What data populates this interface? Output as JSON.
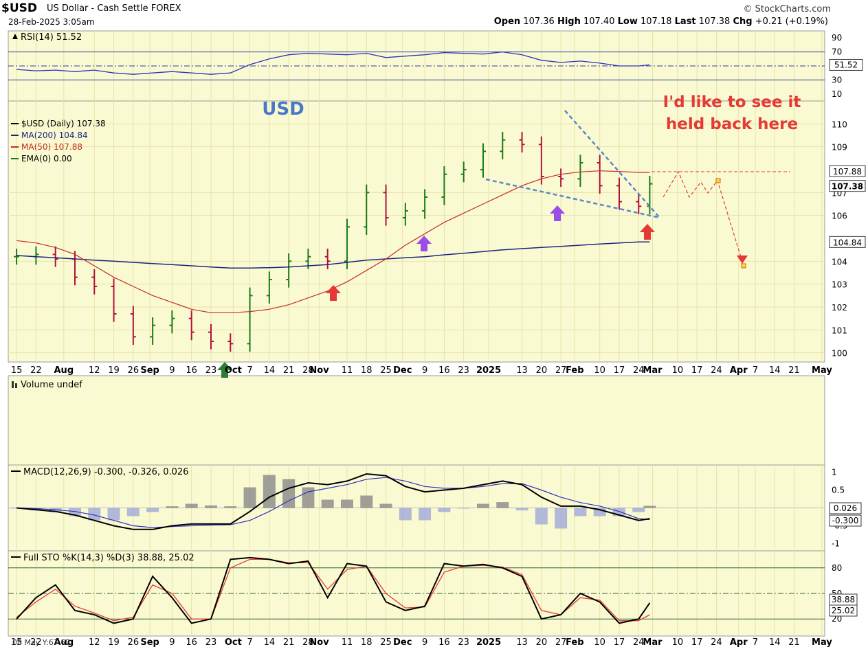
{
  "header": {
    "symbol": "$USD",
    "description": "US Dollar - Cash Settle FOREX",
    "datetime": "28-Feb-2025 3:05am",
    "brand": "© StockCharts.com",
    "open_label": "Open",
    "open": "107.36",
    "high_label": "High",
    "high": "107.40",
    "low_label": "Low",
    "low": "107.18",
    "last_label": "Last",
    "last": "107.38",
    "chg_label": "Chg",
    "chg": "+0.21 (+0.19%)"
  },
  "colors": {
    "panel_bg": "#fafad2",
    "price_up": "#1a7a1a",
    "price_down": "#b0123a",
    "ma200": "#1a237e",
    "ma50": "#c62828",
    "rsi_line": "#3030c0",
    "macd_line": "#000000",
    "signal_line": "#3030c0",
    "stoch_k": "#000000",
    "stoch_d": "#e53935",
    "trend_line": "#5b86c9",
    "annotation_red": "#e53935",
    "arrow_purple": "#9c4de8",
    "arrow_green": "#2e7d32"
  },
  "chart_data": {
    "type": "line",
    "dates": [
      "2024-07-15",
      "2024-07-22",
      "2024-07-29",
      "2024-08-05",
      "2024-08-12",
      "2024-08-19",
      "2024-08-26",
      "2024-09-02",
      "2024-09-09",
      "2024-09-16",
      "2024-09-23",
      "2024-09-30",
      "2024-10-07",
      "2024-10-14",
      "2024-10-21",
      "2024-10-28",
      "2024-11-04",
      "2024-11-11",
      "2024-11-18",
      "2024-11-25",
      "2024-12-02",
      "2024-12-09",
      "2024-12-16",
      "2024-12-23",
      "2024-12-30",
      "2025-01-06",
      "2025-01-13",
      "2025-01-20",
      "2025-01-27",
      "2025-02-03",
      "2025-02-10",
      "2025-02-17",
      "2025-02-24",
      "2025-02-28"
    ],
    "close": [
      104.2,
      104.3,
      104.1,
      103.3,
      102.9,
      101.7,
      100.7,
      101.2,
      101.5,
      100.9,
      100.5,
      100.4,
      102.5,
      103.2,
      104.0,
      104.2,
      104.0,
      105.5,
      107.0,
      105.9,
      106.2,
      106.8,
      107.8,
      108.0,
      108.8,
      109.3,
      109.1,
      107.7,
      107.6,
      108.3,
      107.3,
      106.6,
      106.4,
      107.38
    ],
    "ma200": [
      104.25,
      104.2,
      104.15,
      104.1,
      104.05,
      104.0,
      103.95,
      103.9,
      103.85,
      103.8,
      103.75,
      103.7,
      103.7,
      103.72,
      103.75,
      103.8,
      103.85,
      103.95,
      104.05,
      104.1,
      104.15,
      104.2,
      104.28,
      104.35,
      104.42,
      104.5,
      104.55,
      104.6,
      104.65,
      104.7,
      104.75,
      104.8,
      104.84,
      104.84
    ],
    "ma50": [
      104.9,
      104.8,
      104.6,
      104.3,
      103.8,
      103.3,
      102.9,
      102.5,
      102.2,
      101.9,
      101.75,
      101.75,
      101.8,
      101.9,
      102.1,
      102.4,
      102.7,
      103.1,
      103.6,
      104.1,
      104.7,
      105.2,
      105.7,
      106.1,
      106.5,
      106.9,
      107.3,
      107.6,
      107.8,
      107.9,
      107.95,
      107.92,
      107.88,
      107.88
    ],
    "xticks": [
      {
        "date": "2024-07-15",
        "label": "15",
        "bold": false
      },
      {
        "date": "2024-07-22",
        "label": "22",
        "bold": false
      },
      {
        "date": "2024-08-01",
        "label": "Aug",
        "bold": true
      },
      {
        "date": "2024-08-12",
        "label": "12",
        "bold": false
      },
      {
        "date": "2024-08-19",
        "label": "19",
        "bold": false
      },
      {
        "date": "2024-08-26",
        "label": "26",
        "bold": false
      },
      {
        "date": "2024-09-01",
        "label": "Sep",
        "bold": true
      },
      {
        "date": "2024-09-09",
        "label": "9",
        "bold": false
      },
      {
        "date": "2024-09-16",
        "label": "16",
        "bold": false
      },
      {
        "date": "2024-09-23",
        "label": "23",
        "bold": false
      },
      {
        "date": "2024-10-01",
        "label": "Oct",
        "bold": true
      },
      {
        "date": "2024-10-07",
        "label": "7",
        "bold": false
      },
      {
        "date": "2024-10-14",
        "label": "14",
        "bold": false
      },
      {
        "date": "2024-10-21",
        "label": "21",
        "bold": false
      },
      {
        "date": "2024-10-28",
        "label": "28",
        "bold": false
      },
      {
        "date": "2024-11-01",
        "label": "Nov",
        "bold": true
      },
      {
        "date": "2024-11-11",
        "label": "11",
        "bold": false
      },
      {
        "date": "2024-11-18",
        "label": "18",
        "bold": false
      },
      {
        "date": "2024-11-25",
        "label": "25",
        "bold": false
      },
      {
        "date": "2024-12-01",
        "label": "Dec",
        "bold": true
      },
      {
        "date": "2024-12-09",
        "label": "9",
        "bold": false
      },
      {
        "date": "2024-12-16",
        "label": "16",
        "bold": false
      },
      {
        "date": "2024-12-23",
        "label": "23",
        "bold": false
      },
      {
        "date": "2025-01-01",
        "label": "2025",
        "bold": true
      },
      {
        "date": "2025-01-13",
        "label": "13",
        "bold": false
      },
      {
        "date": "2025-01-20",
        "label": "20",
        "bold": false
      },
      {
        "date": "2025-01-27",
        "label": "27",
        "bold": false
      },
      {
        "date": "2025-02-01",
        "label": "Feb",
        "bold": true
      },
      {
        "date": "2025-02-10",
        "label": "10",
        "bold": false
      },
      {
        "date": "2025-02-17",
        "label": "17",
        "bold": false
      },
      {
        "date": "2025-02-24",
        "label": "24",
        "bold": false
      },
      {
        "date": "2025-03-01",
        "label": "Mar",
        "bold": true
      },
      {
        "date": "2025-03-10",
        "label": "10",
        "bold": false
      },
      {
        "date": "2025-03-17",
        "label": "17",
        "bold": false
      },
      {
        "date": "2025-03-24",
        "label": "24",
        "bold": false
      },
      {
        "date": "2025-04-01",
        "label": "Apr",
        "bold": true
      },
      {
        "date": "2025-04-07",
        "label": "7",
        "bold": false
      },
      {
        "date": "2025-04-14",
        "label": "14",
        "bold": false
      },
      {
        "date": "2025-04-21",
        "label": "21",
        "bold": false
      },
      {
        "date": "2025-05-01",
        "label": "May",
        "bold": true
      }
    ],
    "xlim": [
      "2024-07-12",
      "2025-05-02"
    ],
    "price_panel": {
      "ylim": [
        99.6,
        111.0
      ],
      "yticks": [
        100,
        101,
        102,
        103,
        104,
        106,
        107,
        109,
        110
      ],
      "legend": [
        {
          "label": "$USD (Daily) 107.38",
          "color": "#000000"
        },
        {
          "label": "MA(200) 104.84",
          "color": "#1a237e"
        },
        {
          "label": "MA(50) 107.88",
          "color": "#c62828"
        },
        {
          "label": "EMA(0) 0.00",
          "color": "#1a7a1a"
        }
      ],
      "value_tags": [
        {
          "value": 107.88,
          "label": "107.88"
        },
        {
          "value": 107.38,
          "label": "107.38"
        },
        {
          "value": 104.84,
          "label": "104.84"
        }
      ]
    },
    "rsi_panel": {
      "title": "RSI(14) 51.52",
      "ylim": [
        20,
        100
      ],
      "yticks": [
        90,
        70,
        50,
        30,
        10
      ],
      "levels": [
        70,
        50,
        30
      ],
      "tag": "51.52",
      "values": [
        45,
        43,
        44,
        42,
        44,
        40,
        38,
        40,
        42,
        40,
        38,
        40,
        52,
        60,
        66,
        68,
        67,
        66,
        68,
        62,
        64,
        66,
        69,
        68,
        67,
        70,
        66,
        58,
        55,
        57,
        54,
        50,
        50,
        51.52
      ]
    },
    "volume_panel": {
      "title": "Volume undef"
    },
    "macd_panel": {
      "title": "MACD(12,26,9) -0.300, -0.326, 0.026",
      "ylim": [
        -1.2,
        1.2
      ],
      "yticks": [
        1.0,
        0.5,
        -0.5,
        -1.0
      ],
      "tags": [
        "0.026",
        "-0.300"
      ],
      "macd": [
        0.0,
        -0.05,
        -0.1,
        -0.2,
        -0.35,
        -0.5,
        -0.6,
        -0.6,
        -0.5,
        -0.45,
        -0.45,
        -0.45,
        -0.1,
        0.3,
        0.55,
        0.7,
        0.65,
        0.75,
        0.95,
        0.9,
        0.6,
        0.45,
        0.5,
        0.55,
        0.65,
        0.75,
        0.65,
        0.3,
        0.05,
        0.05,
        -0.05,
        -0.2,
        -0.35,
        -0.3
      ],
      "signal": [
        0.0,
        -0.02,
        -0.05,
        -0.1,
        -0.2,
        -0.35,
        -0.5,
        -0.55,
        -0.52,
        -0.5,
        -0.48,
        -0.47,
        -0.35,
        -0.1,
        0.2,
        0.45,
        0.55,
        0.65,
        0.8,
        0.85,
        0.75,
        0.6,
        0.55,
        0.55,
        0.6,
        0.68,
        0.68,
        0.5,
        0.3,
        0.15,
        0.05,
        -0.1,
        -0.3,
        -0.326
      ]
    },
    "stoch_panel": {
      "title": "Full STO %K(14,3) %D(3) 38.88, 25.02",
      "ylim": [
        0,
        100
      ],
      "yticks": [
        80,
        50,
        20
      ],
      "levels": [
        80,
        50,
        20
      ],
      "tags": [
        "38.88",
        "25.02"
      ],
      "k": [
        20,
        45,
        60,
        30,
        25,
        15,
        20,
        70,
        45,
        15,
        20,
        90,
        92,
        90,
        85,
        88,
        45,
        85,
        82,
        40,
        30,
        35,
        85,
        82,
        84,
        80,
        70,
        20,
        25,
        50,
        40,
        15,
        20,
        38.88
      ],
      "d": [
        22,
        40,
        55,
        35,
        27,
        18,
        22,
        60,
        50,
        20,
        20,
        80,
        90,
        90,
        86,
        86,
        55,
        78,
        82,
        50,
        33,
        34,
        75,
        82,
        83,
        81,
        72,
        30,
        25,
        45,
        42,
        18,
        18,
        25.02
      ]
    },
    "annotations": {
      "title_text": "USD",
      "note_line1": "I'd like to see it",
      "note_line2": "held back here"
    },
    "bottom_label": "08 May Y:67.62"
  }
}
